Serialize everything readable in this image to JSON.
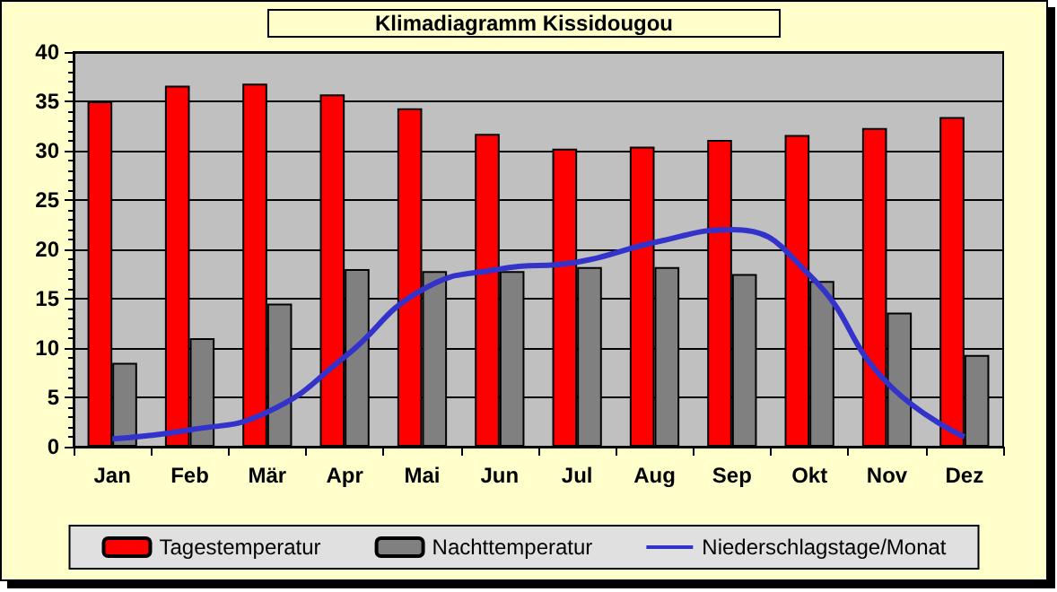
{
  "chart_data": {
    "type": "bar",
    "title": "Klimadiagramm Kissidougou",
    "categories": [
      "Jan",
      "Feb",
      "Mär",
      "Apr",
      "Mai",
      "Jun",
      "Jul",
      "Aug",
      "Sep",
      "Okt",
      "Nov",
      "Dez"
    ],
    "series": [
      {
        "name": "Tagestemperatur",
        "color": "#ff0000",
        "values": [
          35,
          36.6,
          36.8,
          35.7,
          34.3,
          31.7,
          30.2,
          30.4,
          31.1,
          31.6,
          32.3,
          33.4
        ]
      },
      {
        "name": "Nachttemperatur",
        "color": "#808080",
        "values": [
          8.5,
          11,
          14.5,
          18,
          17.8,
          17.8,
          18.2,
          18.2,
          17.5,
          16.8,
          13.6,
          9.3
        ]
      },
      {
        "name": "Niederschlagstage/Monat",
        "type": "line",
        "color": "#3333cc",
        "marker": "none",
        "values": [
          0.8,
          1.7,
          3.5,
          9.1,
          15.9,
          18,
          18.7,
          20.7,
          22,
          17.4,
          6.5,
          1
        ]
      }
    ],
    "ylim": [
      0,
      40
    ],
    "yticks": [
      0,
      5,
      10,
      15,
      20,
      25,
      30,
      35,
      40
    ],
    "grid": "y",
    "legend": "bottom"
  }
}
